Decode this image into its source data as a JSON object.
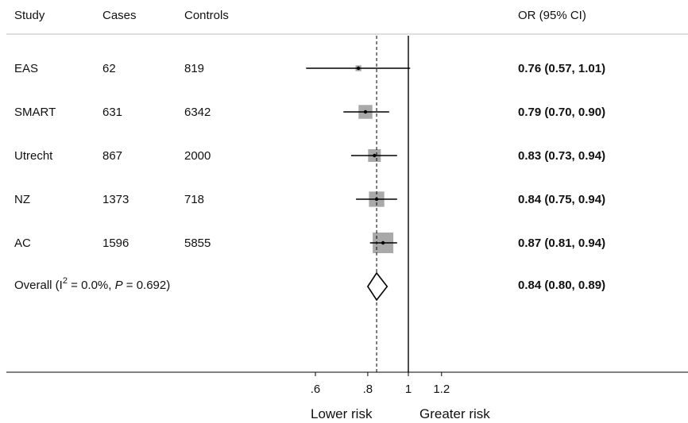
{
  "chart_data": {
    "type": "forest",
    "columns": {
      "study": "Study",
      "cases": "Cases",
      "controls": "Controls",
      "or": "OR (95% CI)"
    },
    "studies": [
      {
        "study": "EAS",
        "cases": "62",
        "controls": "819",
        "or": 0.76,
        "lo": 0.57,
        "hi": 1.01,
        "or_text": "0.76 (0.57, 1.01)",
        "weight": 0.08
      },
      {
        "study": "SMART",
        "cases": "631",
        "controls": "6342",
        "or": 0.79,
        "lo": 0.7,
        "hi": 0.9,
        "or_text": "0.79 (0.70, 0.90)",
        "weight": 0.45
      },
      {
        "study": "Utrecht",
        "cases": "867",
        "controls": "2000",
        "or": 0.83,
        "lo": 0.73,
        "hi": 0.94,
        "or_text": "0.83 (0.73, 0.94)",
        "weight": 0.38
      },
      {
        "study": "NZ",
        "cases": "1373",
        "controls": "718",
        "or": 0.84,
        "lo": 0.75,
        "hi": 0.94,
        "or_text": "0.84 (0.75, 0.94)",
        "weight": 0.55
      },
      {
        "study": "AC",
        "cases": "1596",
        "controls": "5855",
        "or": 0.87,
        "lo": 0.81,
        "hi": 0.94,
        "or_text": "0.87 (0.81, 0.94)",
        "weight": 1.0
      }
    ],
    "overall": {
      "label_prefix": "Overall  (I",
      "label_sup": "2",
      "label_mid": " = 0.0%, ",
      "label_p": "P",
      "label_suffix": " = 0.692)",
      "or": 0.84,
      "lo": 0.8,
      "hi": 0.89,
      "or_text": "0.84 (0.80, 0.89)"
    },
    "null_value": 1.0,
    "x_ticks": [
      {
        "value": 0.6,
        "label": ".6"
      },
      {
        "value": 0.8,
        "label": ".8"
      },
      {
        "value": 1.0,
        "label": "1"
      },
      {
        "value": 1.2,
        "label": "1.2"
      }
    ],
    "x_scale": "log",
    "xlabel_left": "Lower risk",
    "xlabel_right": "Greater risk",
    "colors": {
      "box": "#a9a9a9",
      "line": "#000000",
      "divider": "#bdbdbd"
    }
  }
}
